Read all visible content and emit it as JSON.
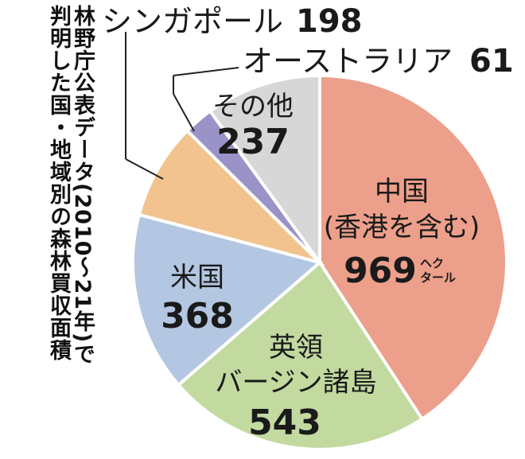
{
  "title_lines": [
    "林野庁公表データ(2010〜21年)で",
    "判明した国・地域別の森林買収面積"
  ],
  "chart_data": {
    "type": "pie",
    "unit": "ヘクタール",
    "slices": [
      {
        "name": "中国",
        "name2": "(香港を含む)",
        "value": 969,
        "color": "#ec9f8a"
      },
      {
        "name": "英領",
        "name2": "バージン諸島",
        "value": 543,
        "color": "#c2d9a0"
      },
      {
        "name": "米国",
        "name2": "",
        "value": 368,
        "color": "#b3c7e2"
      },
      {
        "name": "シンガポール",
        "name2": "",
        "value": 198,
        "color": "#f2c38f"
      },
      {
        "name": "オーストラリア",
        "name2": "",
        "value": 61,
        "color": "#9a93c8"
      },
      {
        "name": "その他",
        "name2": "",
        "value": 237,
        "color": "#d7d7d7"
      }
    ]
  },
  "labels": {
    "china_name": "中国",
    "china_sub": "(香港を含む)",
    "china_value": "969",
    "unit_top": "ヘク",
    "unit_bottom": "タール",
    "bvi_name": "英領",
    "bvi_sub": "バージン諸島",
    "bvi_value": "543",
    "us_name": "米国",
    "us_value": "368",
    "other_name": "その他",
    "other_value": "237",
    "sg_name": "シンガポール",
    "sg_value": "198",
    "au_name": "オーストラリア",
    "au_value": "61"
  }
}
